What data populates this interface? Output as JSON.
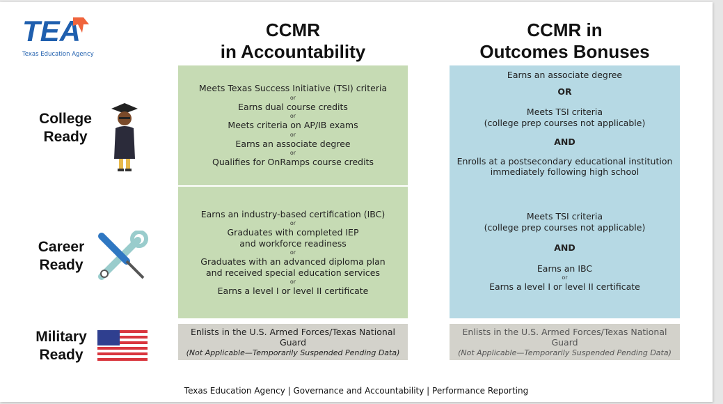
{
  "logo": {
    "letters": "TEA",
    "name": "Texas Education Agency"
  },
  "headers": {
    "left": [
      "CCMR",
      "in Accountability"
    ],
    "right": [
      "CCMR in",
      "Outcomes Bonuses"
    ]
  },
  "rows": {
    "college": [
      "College",
      "Ready"
    ],
    "career": [
      "Career",
      "Ready"
    ],
    "military": [
      "Military",
      "Ready"
    ]
  },
  "accountability": {
    "college": [
      "Meets Texas Success Initiative (TSI) criteria",
      "Earns dual course credits",
      "Meets criteria on AP/IB exams",
      "Earns an associate degree",
      "Qualifies for OnRamps course credits"
    ],
    "career": [
      "Earns an industry-based certification (IBC)",
      "Graduates with completed IEP\nand workforce readiness",
      "Graduates with an advanced diploma plan\nand received special education services",
      "Earns a level I or level II certificate"
    ],
    "military": {
      "text": "Enlists in the U.S. Armed Forces/Texas National Guard",
      "note": "(Not Applicable—Temporarily Suspended Pending Data)"
    }
  },
  "or_label": "or",
  "outcomes": {
    "college": {
      "a": "Earns an associate degree",
      "or": "OR",
      "b1": "Meets TSI criteria",
      "b2": "(college prep courses not applicable)",
      "and": "AND",
      "c1": "Enrolls at a postsecondary educational institution",
      "c2": "immediately following high school"
    },
    "career": {
      "a1": "Meets TSI criteria",
      "a2": "(college prep courses not applicable)",
      "and": "AND",
      "b": "Earns an IBC",
      "or": "or",
      "c": "Earns a level I or level II certificate"
    },
    "military": {
      "text": "Enlists in the U.S. Armed Forces/Texas National Guard",
      "note": "(Not Applicable—Temporarily Suspended Pending Data)"
    }
  },
  "footer": "Texas Education Agency |  Governance and Accountability | Performance Reporting",
  "colors": {
    "tea_blue": "#1f5fae",
    "tea_orange": "#f0643c",
    "green": "#c6dbb4",
    "blue": "#b6d9e4",
    "gray": "#d3d2cb"
  }
}
